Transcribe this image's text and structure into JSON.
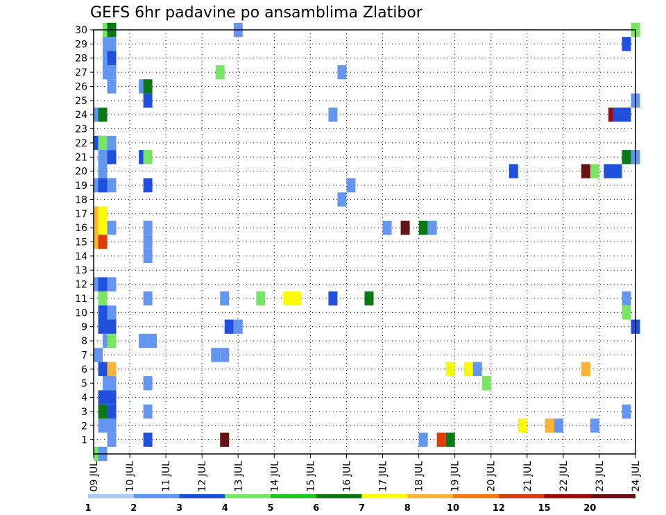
{
  "title": "GEFS 6hr padavine po ansamblima Zlatibor",
  "chart_data": {
    "type": "heatmap",
    "title": "GEFS 6hr padavine po ansamblima Zlatibor",
    "x_tick_labels": [
      "09 JUL",
      "10 JUL",
      "11 JUL",
      "12 JUL",
      "13 JUL",
      "14 JUL",
      "15 JUL",
      "16 JUL",
      "17 JUL",
      "18 JUL",
      "19 JUL",
      "20 JUL",
      "21 JUL",
      "22 JUL",
      "23 JUL",
      "24 JUL"
    ],
    "y_tick_labels": [
      "1",
      "2",
      "3",
      "4",
      "5",
      "6",
      "7",
      "8",
      "9",
      "10",
      "11",
      "12",
      "13",
      "14",
      "15",
      "16",
      "17",
      "18",
      "19",
      "20",
      "21",
      "22",
      "23",
      "24",
      "25",
      "26",
      "27",
      "28",
      "29",
      "30"
    ],
    "xlim_days": [
      9,
      24
    ],
    "ylim": [
      0,
      30
    ],
    "grid": "dotted",
    "colorbar": {
      "labels": [
        "1",
        "2",
        "3",
        "4",
        "5",
        "6",
        "7",
        "8",
        "10",
        "12",
        "15",
        "20"
      ],
      "colors": [
        "#b4c8f5",
        "#6496f0",
        "#1e50dc",
        "#78e664",
        "#1ec81e",
        "#0a7814",
        "#fafa0a",
        "#fab43c",
        "#f5780a",
        "#dc3c0a",
        "#a00a0a",
        "#641414"
      ]
    },
    "cells": [
      [
        30,
        9.25,
        3
      ],
      [
        30,
        9.375,
        5
      ],
      [
        30,
        12.875,
        1
      ],
      [
        30,
        23.875,
        3
      ],
      [
        29,
        9.25,
        1
      ],
      [
        29,
        9.375,
        1
      ],
      [
        29,
        23.625,
        2
      ],
      [
        28,
        9.25,
        1
      ],
      [
        28,
        9.375,
        2
      ],
      [
        27,
        9.25,
        1
      ],
      [
        27,
        9.375,
        1
      ],
      [
        27,
        12.375,
        3
      ],
      [
        27,
        15.75,
        1
      ],
      [
        26,
        9.375,
        1
      ],
      [
        26,
        10.25,
        1
      ],
      [
        26,
        10.375,
        5
      ],
      [
        25,
        10.375,
        2
      ],
      [
        25,
        23.875,
        1
      ],
      [
        24,
        9,
        1
      ],
      [
        24,
        9.125,
        5
      ],
      [
        24,
        15.5,
        1
      ],
      [
        24,
        23.25,
        10
      ],
      [
        24,
        23.375,
        2
      ],
      [
        24,
        23.5,
        2
      ],
      [
        24,
        23.625,
        2
      ],
      [
        22,
        9,
        2
      ],
      [
        22,
        9.125,
        3
      ],
      [
        22,
        9.375,
        1
      ],
      [
        21,
        9.125,
        1
      ],
      [
        21,
        9.375,
        2
      ],
      [
        21,
        10.25,
        2
      ],
      [
        21,
        10.375,
        3
      ],
      [
        21,
        23.625,
        5
      ],
      [
        21,
        23.875,
        1
      ],
      [
        20,
        9.125,
        1
      ],
      [
        20,
        20.5,
        2
      ],
      [
        20,
        22.5,
        11
      ],
      [
        20,
        22.75,
        3
      ],
      [
        20,
        23.125,
        2
      ],
      [
        20,
        23.375,
        2
      ],
      [
        19,
        9,
        1
      ],
      [
        19,
        9.125,
        2
      ],
      [
        19,
        9.375,
        1
      ],
      [
        19,
        10.375,
        2
      ],
      [
        19,
        16,
        1
      ],
      [
        18,
        15.75,
        1
      ],
      [
        17,
        9,
        7
      ],
      [
        17,
        9.125,
        6
      ],
      [
        16,
        9,
        7
      ],
      [
        16,
        9.125,
        6
      ],
      [
        16,
        9.375,
        1
      ],
      [
        16,
        10.375,
        1
      ],
      [
        16,
        17,
        1
      ],
      [
        16,
        17.5,
        11
      ],
      [
        16,
        18,
        5
      ],
      [
        16,
        18.25,
        1
      ],
      [
        15,
        9,
        7
      ],
      [
        15,
        9.125,
        9
      ],
      [
        15,
        10.375,
        1
      ],
      [
        14,
        10.375,
        1
      ],
      [
        12,
        9,
        1
      ],
      [
        12,
        9.125,
        2
      ],
      [
        12,
        9.375,
        1
      ],
      [
        11,
        9.125,
        3
      ],
      [
        11,
        10.375,
        1
      ],
      [
        11,
        12.5,
        1
      ],
      [
        11,
        13.5,
        3
      ],
      [
        11,
        14.25,
        6
      ],
      [
        11,
        14.5,
        6
      ],
      [
        11,
        15.5,
        2
      ],
      [
        11,
        16.5,
        5
      ],
      [
        11,
        23.625,
        1
      ],
      [
        10,
        9.125,
        2
      ],
      [
        10,
        9.375,
        1
      ],
      [
        10,
        23.625,
        3
      ],
      [
        9,
        9.125,
        2
      ],
      [
        9,
        9.375,
        2
      ],
      [
        9,
        12.625,
        2
      ],
      [
        9,
        12.875,
        1
      ],
      [
        9,
        23.875,
        2
      ],
      [
        8,
        9.25,
        1
      ],
      [
        8,
        9.375,
        3
      ],
      [
        8,
        10.25,
        1
      ],
      [
        8,
        10.5,
        1
      ],
      [
        7,
        9,
        1
      ],
      [
        7,
        12.25,
        1
      ],
      [
        7,
        12.5,
        1
      ],
      [
        6,
        9.125,
        2
      ],
      [
        6,
        9.375,
        7
      ],
      [
        6,
        18.75,
        6
      ],
      [
        6,
        19.25,
        6
      ],
      [
        6,
        19.5,
        1
      ],
      [
        6,
        22.5,
        7
      ],
      [
        5,
        9.25,
        1
      ],
      [
        5,
        9.375,
        1
      ],
      [
        5,
        10.375,
        1
      ],
      [
        5,
        19.75,
        3
      ],
      [
        4,
        9.125,
        2
      ],
      [
        4,
        9.375,
        2
      ],
      [
        3,
        9.125,
        5
      ],
      [
        3,
        9.375,
        2
      ],
      [
        3,
        10.375,
        1
      ],
      [
        3,
        23.625,
        1
      ],
      [
        2,
        9.125,
        1
      ],
      [
        2,
        9.375,
        1
      ],
      [
        2,
        20.75,
        6
      ],
      [
        2,
        21.5,
        7
      ],
      [
        2,
        21.75,
        1
      ],
      [
        2,
        22.75,
        1
      ],
      [
        1,
        9.375,
        1
      ],
      [
        1,
        10.375,
        2
      ],
      [
        1,
        12.5,
        11
      ],
      [
        1,
        18,
        1
      ],
      [
        1,
        18.5,
        9
      ],
      [
        1,
        18.75,
        5
      ],
      [
        0,
        9,
        3
      ],
      [
        0,
        9.125,
        1
      ]
    ]
  }
}
